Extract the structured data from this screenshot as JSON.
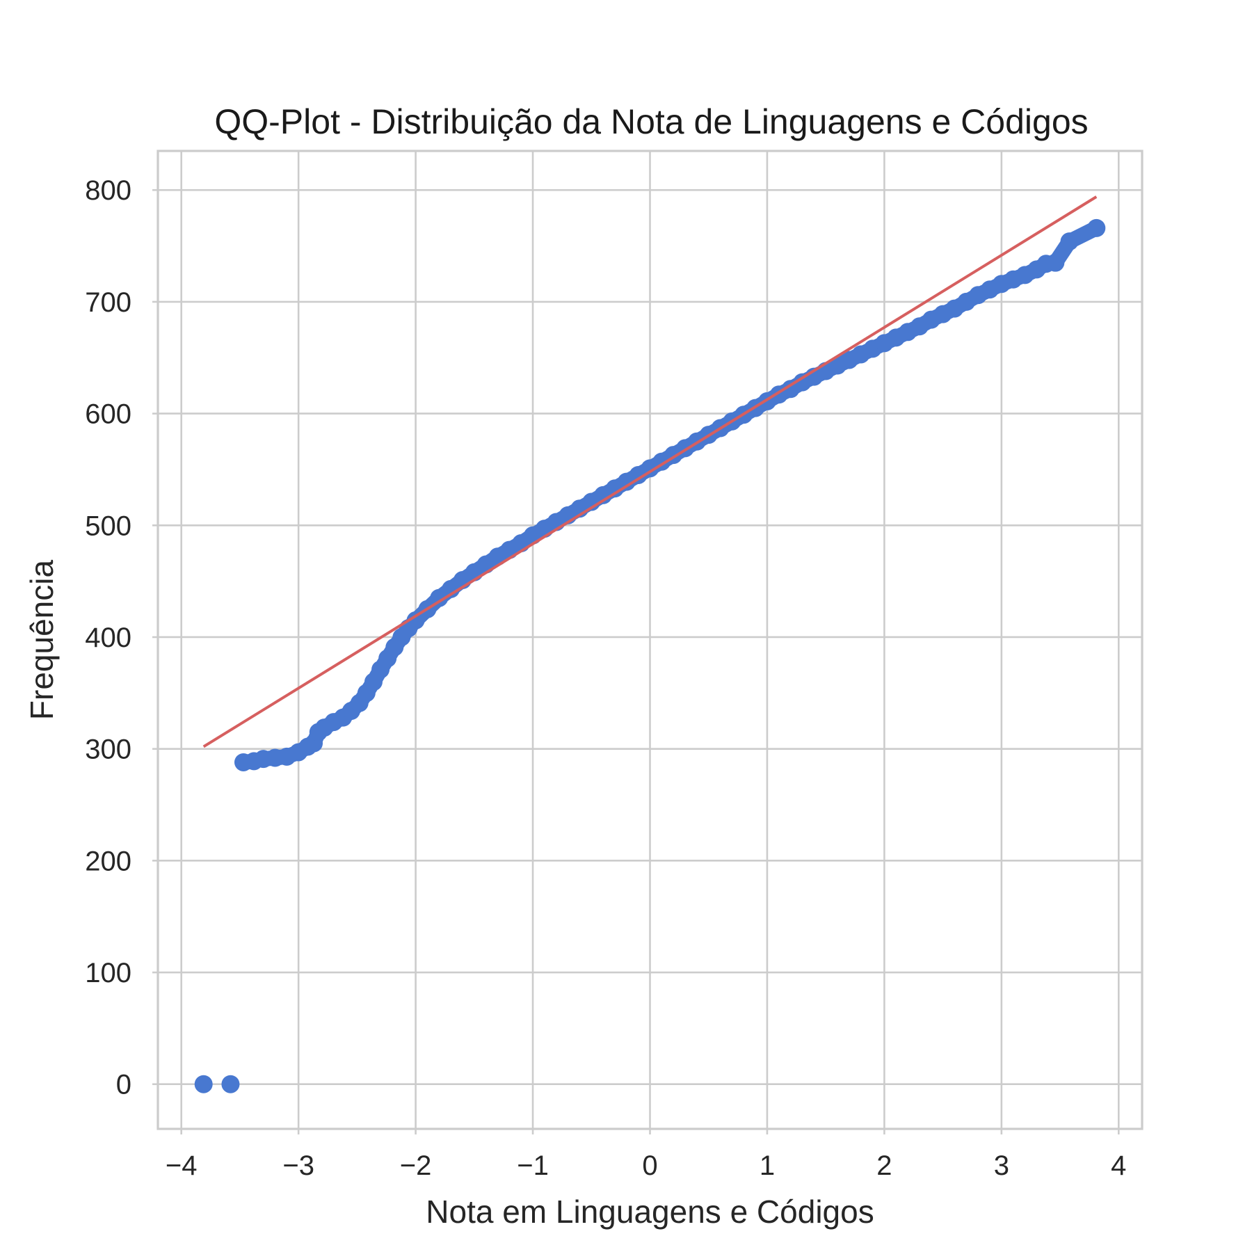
{
  "chart_data": {
    "type": "scatter",
    "title": "QQ-Plot - Distribuição da Nota de Linguagens e Códigos",
    "xlabel": "Nota em Linguagens e Códigos",
    "ylabel": "Frequência",
    "xlim": [
      -4.2,
      4.2
    ],
    "ylim": [
      -40,
      835
    ],
    "grid": true,
    "x_ticks": [
      {
        "value": -4,
        "label": "−4"
      },
      {
        "value": -3,
        "label": "−3"
      },
      {
        "value": -2,
        "label": "−2"
      },
      {
        "value": -1,
        "label": "−1"
      },
      {
        "value": 0,
        "label": "0"
      },
      {
        "value": 1,
        "label": "1"
      },
      {
        "value": 2,
        "label": "2"
      },
      {
        "value": 3,
        "label": "3"
      },
      {
        "value": 4,
        "label": "4"
      }
    ],
    "y_ticks": [
      {
        "value": 0,
        "label": "0"
      },
      {
        "value": 100,
        "label": "100"
      },
      {
        "value": 200,
        "label": "200"
      },
      {
        "value": 300,
        "label": "300"
      },
      {
        "value": 400,
        "label": "400"
      },
      {
        "value": 500,
        "label": "500"
      },
      {
        "value": 600,
        "label": "600"
      },
      {
        "value": 700,
        "label": "700"
      },
      {
        "value": 800,
        "label": "800"
      }
    ],
    "series": [
      {
        "kind": "points",
        "color": "#4878d0",
        "points": [
          [
            -3.81,
            0
          ],
          [
            -3.58,
            0
          ],
          [
            -3.47,
            288
          ],
          [
            -3.38,
            289
          ],
          [
            -3.3,
            291
          ],
          [
            -3.2,
            292
          ],
          [
            -3.1,
            293
          ],
          [
            -3.0,
            297
          ],
          [
            -2.92,
            302
          ],
          [
            -2.87,
            305
          ],
          [
            -2.83,
            315
          ],
          [
            -2.78,
            319
          ],
          [
            -2.7,
            324
          ],
          [
            -2.62,
            328
          ],
          [
            -2.55,
            334
          ],
          [
            -2.48,
            341
          ],
          [
            -2.42,
            350
          ],
          [
            -2.36,
            360
          ],
          [
            -2.3,
            371
          ],
          [
            -2.24,
            381
          ],
          [
            -2.18,
            391
          ],
          [
            -2.12,
            400
          ],
          [
            -2.06,
            408
          ],
          [
            -2.0,
            415
          ],
          [
            -1.9,
            425
          ],
          [
            -1.8,
            435
          ],
          [
            -1.7,
            443
          ],
          [
            -1.6,
            451
          ],
          [
            -1.5,
            458
          ],
          [
            -1.4,
            465
          ],
          [
            -1.3,
            472
          ],
          [
            -1.2,
            478
          ],
          [
            -1.1,
            484
          ],
          [
            -1.0,
            491
          ],
          [
            -0.9,
            497
          ],
          [
            -0.8,
            503
          ],
          [
            -0.7,
            509
          ],
          [
            -0.6,
            515
          ],
          [
            -0.5,
            521
          ],
          [
            -0.4,
            527
          ],
          [
            -0.3,
            533
          ],
          [
            -0.2,
            539
          ],
          [
            -0.1,
            545
          ],
          [
            0.0,
            551
          ],
          [
            0.1,
            557
          ],
          [
            0.2,
            563
          ],
          [
            0.3,
            569
          ],
          [
            0.4,
            575
          ],
          [
            0.5,
            581
          ],
          [
            0.6,
            587
          ],
          [
            0.7,
            593
          ],
          [
            0.8,
            599
          ],
          [
            0.9,
            605
          ],
          [
            1.0,
            611
          ],
          [
            1.1,
            617
          ],
          [
            1.2,
            622
          ],
          [
            1.3,
            628
          ],
          [
            1.4,
            633
          ],
          [
            1.5,
            638
          ],
          [
            1.6,
            643
          ],
          [
            1.7,
            648
          ],
          [
            1.8,
            653
          ],
          [
            1.9,
            658
          ],
          [
            2.0,
            663
          ],
          [
            2.1,
            668
          ],
          [
            2.2,
            673
          ],
          [
            2.3,
            678
          ],
          [
            2.4,
            684
          ],
          [
            2.5,
            689
          ],
          [
            2.6,
            694
          ],
          [
            2.7,
            700
          ],
          [
            2.8,
            706
          ],
          [
            2.9,
            711
          ],
          [
            3.0,
            716
          ],
          [
            3.1,
            720
          ],
          [
            3.2,
            724
          ],
          [
            3.3,
            729
          ],
          [
            3.38,
            734
          ],
          [
            3.46,
            735
          ],
          [
            3.58,
            754
          ],
          [
            3.81,
            766
          ]
        ]
      },
      {
        "kind": "fit-line",
        "color": "#d65f5f",
        "points": [
          [
            -3.81,
            302
          ],
          [
            3.81,
            794
          ]
        ]
      }
    ]
  }
}
